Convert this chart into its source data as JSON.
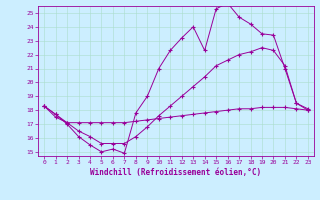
{
  "xlabel": "Windchill (Refroidissement éolien,°C)",
  "bg_color": "#cceeff",
  "line_color": "#990099",
  "xlim": [
    -0.5,
    23.5
  ],
  "ylim": [
    14.7,
    25.5
  ],
  "xticks": [
    0,
    1,
    2,
    3,
    4,
    5,
    6,
    7,
    8,
    9,
    10,
    11,
    12,
    13,
    14,
    15,
    16,
    17,
    18,
    19,
    20,
    21,
    22,
    23
  ],
  "yticks": [
    15,
    16,
    17,
    18,
    19,
    20,
    21,
    22,
    23,
    24,
    25
  ],
  "line1_x": [
    0,
    1,
    2,
    3,
    4,
    5,
    6,
    7,
    8,
    9,
    10,
    11,
    12,
    13,
    14,
    15,
    16,
    17,
    18,
    19,
    20,
    21,
    22,
    23
  ],
  "line1_y": [
    18.3,
    17.7,
    17.0,
    16.1,
    15.5,
    15.0,
    15.2,
    14.9,
    17.8,
    19.0,
    21.0,
    22.3,
    23.2,
    24.0,
    22.3,
    25.3,
    25.7,
    24.7,
    24.2,
    23.5,
    23.4,
    21.0,
    18.5,
    18.0
  ],
  "line2_x": [
    0,
    1,
    2,
    3,
    4,
    5,
    6,
    7,
    8,
    9,
    10,
    11,
    12,
    13,
    14,
    15,
    16,
    17,
    18,
    19,
    20,
    21,
    22,
    23
  ],
  "line2_y": [
    18.3,
    17.7,
    17.1,
    16.5,
    16.1,
    15.6,
    15.6,
    15.6,
    16.1,
    16.8,
    17.6,
    18.3,
    19.0,
    19.7,
    20.4,
    21.2,
    21.6,
    22.0,
    22.2,
    22.5,
    22.3,
    21.2,
    18.5,
    18.1
  ],
  "line3_x": [
    0,
    1,
    2,
    3,
    4,
    5,
    6,
    7,
    8,
    9,
    10,
    11,
    12,
    13,
    14,
    15,
    16,
    17,
    18,
    19,
    20,
    21,
    22,
    23
  ],
  "line3_y": [
    18.3,
    17.5,
    17.1,
    17.1,
    17.1,
    17.1,
    17.1,
    17.1,
    17.2,
    17.3,
    17.4,
    17.5,
    17.6,
    17.7,
    17.8,
    17.9,
    18.0,
    18.1,
    18.1,
    18.2,
    18.2,
    18.2,
    18.1,
    18.0
  ]
}
